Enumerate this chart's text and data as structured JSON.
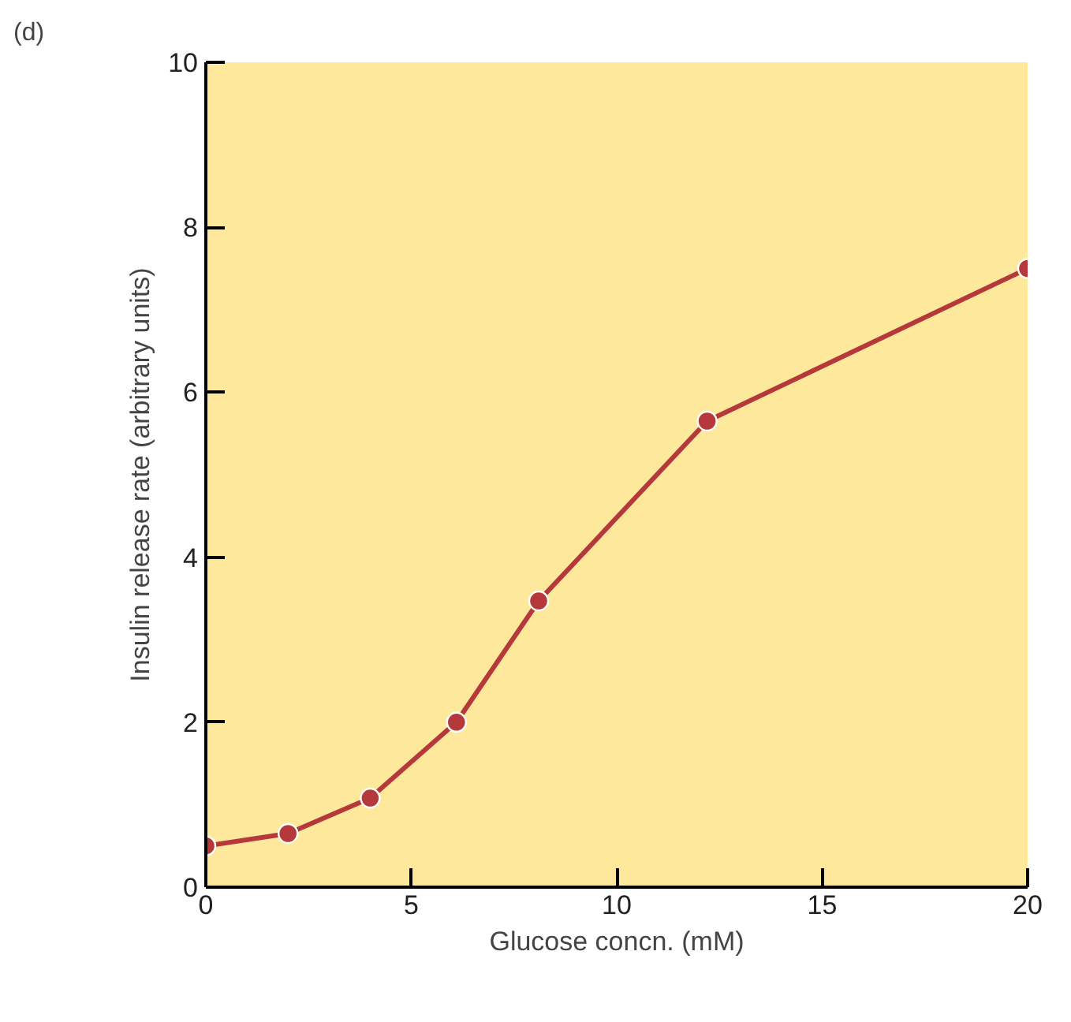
{
  "chart_data": {
    "type": "line",
    "xlabel": "Glucose concn. (mM)",
    "ylabel": "Insulin release rate (arbitrary units)",
    "annotations": [
      "(d)"
    ],
    "x": [
      0,
      2,
      4,
      6.1,
      8.1,
      12.2,
      20
    ],
    "series": [
      {
        "color": "#b5393a",
        "values": [
          0.5,
          0.65,
          1.08,
          2.0,
          3.47,
          5.65,
          7.5
        ]
      }
    ],
    "xlim": [
      0,
      20
    ],
    "xticks": [
      0,
      5,
      10,
      15,
      20
    ],
    "ylim": [
      0,
      10
    ],
    "yticks": [
      0,
      2,
      4,
      6,
      8,
      10
    ],
    "marker": "circle",
    "line_style": "solid"
  }
}
